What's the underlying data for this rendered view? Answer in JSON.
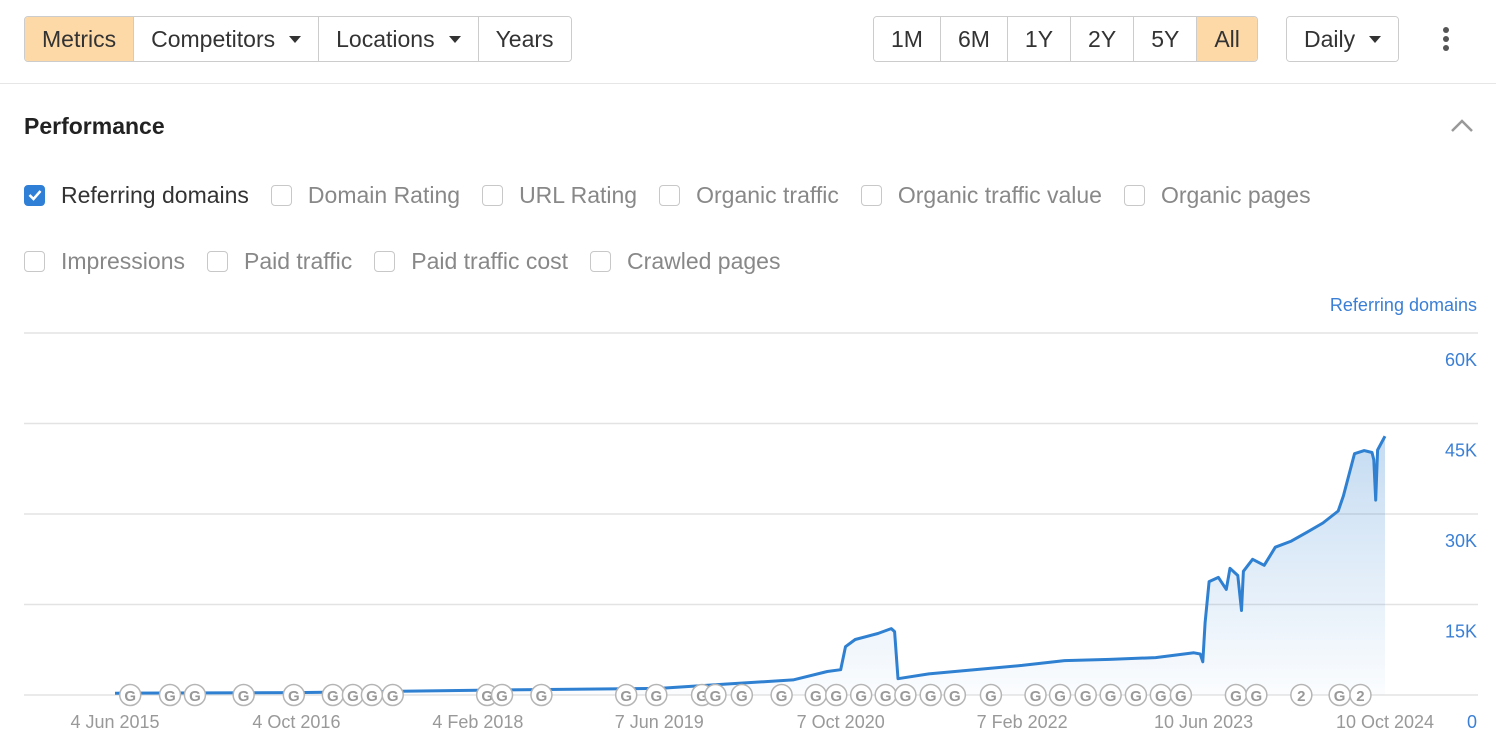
{
  "toolbar": {
    "filters": [
      {
        "label": "Metrics",
        "active": true,
        "dropdown": false
      },
      {
        "label": "Competitors",
        "active": false,
        "dropdown": true
      },
      {
        "label": "Locations",
        "active": false,
        "dropdown": true
      },
      {
        "label": "Years",
        "active": false,
        "dropdown": false
      }
    ],
    "ranges": [
      {
        "label": "1M",
        "active": false
      },
      {
        "label": "6M",
        "active": false
      },
      {
        "label": "1Y",
        "active": false
      },
      {
        "label": "2Y",
        "active": false
      },
      {
        "label": "5Y",
        "active": false
      },
      {
        "label": "All",
        "active": true
      }
    ],
    "interval": "Daily"
  },
  "section": {
    "title": "Performance"
  },
  "metrics": [
    {
      "label": "Referring domains",
      "checked": true
    },
    {
      "label": "Domain Rating",
      "checked": false
    },
    {
      "label": "URL Rating",
      "checked": false
    },
    {
      "label": "Organic traffic",
      "checked": false
    },
    {
      "label": "Organic traffic value",
      "checked": false
    },
    {
      "label": "Organic pages",
      "checked": false
    },
    {
      "label": "Impressions",
      "checked": false
    },
    {
      "label": "Paid traffic",
      "checked": false
    },
    {
      "label": "Paid traffic cost",
      "checked": false
    },
    {
      "label": "Crawled pages",
      "checked": false
    }
  ],
  "chart_data": {
    "type": "line",
    "ylabel": "Referring domains",
    "x": [
      "2015-06-04",
      "2016-10-04",
      "2018-02-04",
      "2019-06-07",
      "2019-12-01",
      "2020-06-01",
      "2020-09-01",
      "2020-10-07",
      "2020-10-20",
      "2020-11-15",
      "2021-01-15",
      "2021-02-20",
      "2021-03-01",
      "2021-03-10",
      "2021-06-01",
      "2021-10-01",
      "2022-02-07",
      "2022-06-01",
      "2022-10-01",
      "2023-02-01",
      "2023-05-15",
      "2023-06-01",
      "2023-06-08",
      "2023-06-14",
      "2023-06-25",
      "2023-07-20",
      "2023-08-10",
      "2023-08-20",
      "2023-09-10",
      "2023-09-20",
      "2023-09-25",
      "2023-10-20",
      "2023-11-20",
      "2023-12-20",
      "2024-02-01",
      "2024-03-15",
      "2024-04-26",
      "2024-06-06",
      "2024-06-20",
      "2024-07-20",
      "2024-08-15",
      "2024-09-05",
      "2024-09-10",
      "2024-09-15",
      "2024-09-20",
      "2024-10-10"
    ],
    "series": [
      {
        "color": "#2f80d1",
        "values": [
          300,
          400,
          800,
          1100,
          1800,
          2500,
          3900,
          4200,
          8000,
          9200,
          10200,
          11000,
          10500,
          2700,
          3500,
          4200,
          4900,
          5700,
          5900,
          6200,
          7000,
          6800,
          5500,
          12000,
          18800,
          19500,
          17500,
          21000,
          19800,
          14000,
          20500,
          22500,
          21500,
          24500,
          25500,
          27000,
          28500,
          30500,
          33000,
          40000,
          40500,
          40200,
          39000,
          32300,
          40600,
          42900
        ]
      }
    ],
    "xlim": [
      "2015-06-04",
      "2024-10-10"
    ],
    "xticks": [
      {
        "value": "2015-06-04",
        "label": "4 Jun 2015"
      },
      {
        "value": "2016-10-04",
        "label": "4 Oct 2016"
      },
      {
        "value": "2018-02-04",
        "label": "4 Feb 2018"
      },
      {
        "value": "2019-06-07",
        "label": "7 Jun 2019"
      },
      {
        "value": "2020-10-07",
        "label": "7 Oct 2020"
      },
      {
        "value": "2022-02-07",
        "label": "7 Feb 2022"
      },
      {
        "value": "2023-06-10",
        "label": "10 Jun 2023"
      },
      {
        "value": "2024-10-10",
        "label": "10 Oct 2024"
      }
    ],
    "ylim": [
      0,
      60000
    ],
    "yticks": [
      0,
      {
        "value": 15000,
        "label": "15K"
      },
      {
        "value": 30000,
        "label": "30K"
      },
      {
        "value": 45000,
        "label": "45K"
      },
      {
        "value": 60000,
        "label": "60K"
      }
    ],
    "grid": true,
    "annotations": [
      {
        "x": "2015-07-15",
        "label": "G"
      },
      {
        "x": "2015-10-30",
        "label": "G"
      },
      {
        "x": "2016-01-05",
        "label": "G"
      },
      {
        "x": "2016-05-15",
        "label": "G"
      },
      {
        "x": "2016-09-27",
        "label": "G"
      },
      {
        "x": "2017-01-10",
        "label": "G"
      },
      {
        "x": "2017-03-05",
        "label": "G"
      },
      {
        "x": "2017-04-25",
        "label": "G"
      },
      {
        "x": "2017-06-20",
        "label": "G"
      },
      {
        "x": "2018-03-01",
        "label": "G"
      },
      {
        "x": "2018-04-10",
        "label": "G"
      },
      {
        "x": "2018-07-25",
        "label": "G"
      },
      {
        "x": "2019-03-10",
        "label": "G"
      },
      {
        "x": "2019-05-30",
        "label": "G"
      },
      {
        "x": "2019-09-30",
        "label": "G"
      },
      {
        "x": "2019-11-05",
        "label": "G"
      },
      {
        "x": "2020-01-15",
        "label": "G"
      },
      {
        "x": "2020-05-01",
        "label": "G"
      },
      {
        "x": "2020-08-01",
        "label": "G"
      },
      {
        "x": "2020-09-25",
        "label": "G"
      },
      {
        "x": "2020-12-01",
        "label": "G"
      },
      {
        "x": "2021-02-05",
        "label": "G"
      },
      {
        "x": "2021-03-30",
        "label": "G"
      },
      {
        "x": "2021-06-06",
        "label": "G"
      },
      {
        "x": "2021-08-10",
        "label": "G"
      },
      {
        "x": "2021-11-15",
        "label": "G"
      },
      {
        "x": "2022-03-15",
        "label": "G"
      },
      {
        "x": "2022-05-20",
        "label": "G"
      },
      {
        "x": "2022-07-28",
        "label": "G"
      },
      {
        "x": "2022-10-03",
        "label": "G"
      },
      {
        "x": "2022-12-10",
        "label": "G"
      },
      {
        "x": "2023-02-15",
        "label": "G"
      },
      {
        "x": "2023-04-10",
        "label": "G"
      },
      {
        "x": "2023-09-05",
        "label": "G"
      },
      {
        "x": "2023-10-30",
        "label": "G"
      },
      {
        "x": "2024-02-28",
        "label": "2"
      },
      {
        "x": "2024-06-10",
        "label": "G"
      },
      {
        "x": "2024-08-05",
        "label": "2"
      }
    ]
  }
}
